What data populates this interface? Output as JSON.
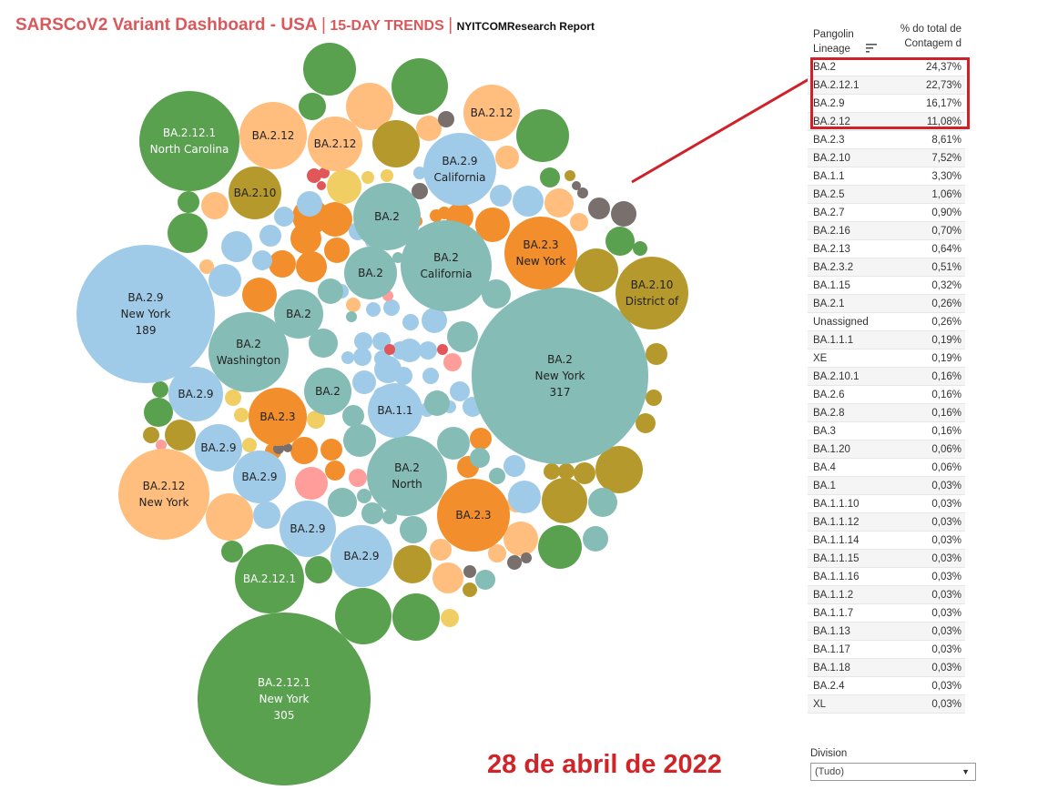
{
  "title": {
    "main": "SARSCoV2 Variant Dashboard - USA",
    "separator": "|",
    "trend": "15-DAY TRENDS",
    "separator2": "|",
    "report": "NYITCOMResearch Report"
  },
  "date_caption": "28 de abril de 2022",
  "colors": {
    "title_red": "#d9585b",
    "highlight_red": "#d0202a",
    "BA.2": "#86bcb6",
    "BA.2.9": "#a0cbe8",
    "BA.2.12": "#ffbe7d",
    "BA.2.12.1": "#59a14f",
    "BA.2.3": "#f28e2b",
    "BA.2.10": "#b6992d",
    "BA.1.1": "#a0cbe8",
    "other_gray": "#79706e",
    "other_red": "#e15759",
    "other_yellow": "#f1ce63",
    "other_pink": "#ff9d9a"
  },
  "bubbles": [
    {
      "lineage": "BA.2.12.1",
      "state": "New York",
      "count": "305"
    },
    {
      "lineage": "BA.2",
      "state": "New York",
      "count": "317"
    },
    {
      "lineage": "BA.2.9",
      "state": "New York",
      "count": "189"
    },
    {
      "lineage": "BA.2.12.1",
      "state": "North Carolina",
      "count": ""
    },
    {
      "lineage": "BA.2",
      "state": "California",
      "count": ""
    },
    {
      "lineage": "BA.2",
      "state": "Washington",
      "count": ""
    },
    {
      "lineage": "BA.2",
      "state": "North",
      "count": ""
    },
    {
      "lineage": "BA.2.12",
      "state": "New York",
      "count": ""
    },
    {
      "lineage": "BA.2.9",
      "state": "California",
      "count": ""
    },
    {
      "lineage": "BA.2.3",
      "state": "New York",
      "count": ""
    },
    {
      "lineage": "BA.2.10",
      "state": "District of",
      "count": ""
    },
    {
      "lineage": "BA.2.3",
      "state": "",
      "count": ""
    },
    {
      "lineage": "BA.2.3",
      "state": "",
      "count": ""
    },
    {
      "lineage": "BA.2.12.1",
      "state": "",
      "count": ""
    },
    {
      "lineage": "BA.2.12",
      "state": "",
      "count": ""
    },
    {
      "lineage": "BA.2.12",
      "state": "",
      "count": ""
    },
    {
      "lineage": "BA.2.12",
      "state": "",
      "count": ""
    },
    {
      "lineage": "BA.2.10",
      "state": "",
      "count": ""
    },
    {
      "lineage": "BA.2",
      "state": "",
      "count": ""
    },
    {
      "lineage": "BA.2",
      "state": "",
      "count": ""
    },
    {
      "lineage": "BA.2",
      "state": "",
      "count": ""
    },
    {
      "lineage": "BA.2",
      "state": "",
      "count": ""
    },
    {
      "lineage": "BA.1.1",
      "state": "",
      "count": ""
    },
    {
      "lineage": "BA.2.9",
      "state": "",
      "count": ""
    },
    {
      "lineage": "BA.2.9",
      "state": "",
      "count": ""
    },
    {
      "lineage": "BA.2.9",
      "state": "",
      "count": ""
    },
    {
      "lineage": "BA.2.9",
      "state": "",
      "count": ""
    },
    {
      "lineage": "BA.2.9",
      "state": "",
      "count": ""
    }
  ],
  "table": {
    "col1_header": "Pangolin Lineage",
    "col2_header": "% do total de Contagem d",
    "highlighted_rows": 4,
    "rows": [
      {
        "lineage": "BA.2",
        "pct": "24,37%"
      },
      {
        "lineage": "BA.2.12.1",
        "pct": "22,73%"
      },
      {
        "lineage": "BA.2.9",
        "pct": "16,17%"
      },
      {
        "lineage": "BA.2.12",
        "pct": "11,08%"
      },
      {
        "lineage": "BA.2.3",
        "pct": "8,61%"
      },
      {
        "lineage": "BA.2.10",
        "pct": "7,52%"
      },
      {
        "lineage": "BA.1.1",
        "pct": "3,30%"
      },
      {
        "lineage": "BA.2.5",
        "pct": "1,06%"
      },
      {
        "lineage": "BA.2.7",
        "pct": "0,90%"
      },
      {
        "lineage": "BA.2.16",
        "pct": "0,70%"
      },
      {
        "lineage": "BA.2.13",
        "pct": "0,64%"
      },
      {
        "lineage": "BA.2.3.2",
        "pct": "0,51%"
      },
      {
        "lineage": "BA.1.15",
        "pct": "0,32%"
      },
      {
        "lineage": "BA.2.1",
        "pct": "0,26%"
      },
      {
        "lineage": "Unassigned",
        "pct": "0,26%"
      },
      {
        "lineage": "BA.1.1.1",
        "pct": "0,19%"
      },
      {
        "lineage": "XE",
        "pct": "0,19%"
      },
      {
        "lineage": "BA.2.10.1",
        "pct": "0,16%"
      },
      {
        "lineage": "BA.2.6",
        "pct": "0,16%"
      },
      {
        "lineage": "BA.2.8",
        "pct": "0,16%"
      },
      {
        "lineage": "BA.3",
        "pct": "0,16%"
      },
      {
        "lineage": "BA.1.20",
        "pct": "0,06%"
      },
      {
        "lineage": "BA.4",
        "pct": "0,06%"
      },
      {
        "lineage": "BA.1",
        "pct": "0,03%"
      },
      {
        "lineage": "BA.1.1.10",
        "pct": "0,03%"
      },
      {
        "lineage": "BA.1.1.12",
        "pct": "0,03%"
      },
      {
        "lineage": "BA.1.1.14",
        "pct": "0,03%"
      },
      {
        "lineage": "BA.1.1.15",
        "pct": "0,03%"
      },
      {
        "lineage": "BA.1.1.16",
        "pct": "0,03%"
      },
      {
        "lineage": "BA.1.1.2",
        "pct": "0,03%"
      },
      {
        "lineage": "BA.1.1.7",
        "pct": "0,03%"
      },
      {
        "lineage": "BA.1.13",
        "pct": "0,03%"
      },
      {
        "lineage": "BA.1.17",
        "pct": "0,03%"
      },
      {
        "lineage": "BA.1.18",
        "pct": "0,03%"
      },
      {
        "lineage": "BA.2.4",
        "pct": "0,03%"
      },
      {
        "lineage": "XL",
        "pct": "0,03%"
      }
    ]
  },
  "filter": {
    "label": "Division",
    "value": "(Tudo)",
    "arrow_icon": "dropdown-arrow-icon"
  }
}
